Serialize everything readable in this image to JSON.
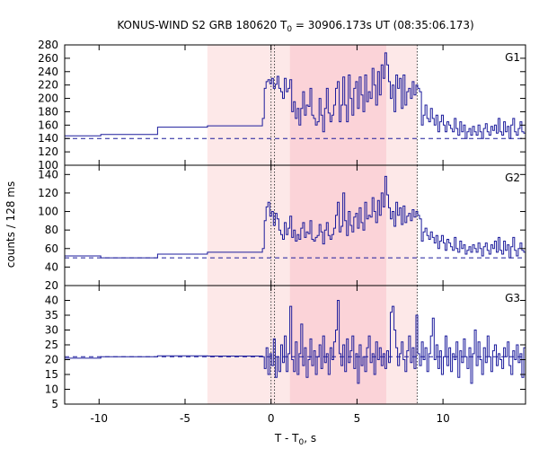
{
  "chart_data": {
    "type": "line",
    "title": "KONUS-WIND S2 GRB 180620 T",
    "title_sub": "0",
    "title_rest": " = 30906.173s UT (08:35:06.173)",
    "xlabel": "T - T",
    "xlabel_sub": "0",
    "xlabel_rest": ", s",
    "ylabel": "counts / 128 ms",
    "xlim": [
      -12,
      14.8
    ],
    "xticks": [
      -10,
      -5,
      0,
      5,
      10
    ],
    "xtick_labels": [
      "-10",
      "-5",
      "0",
      "5",
      "10"
    ],
    "shaded_regions": [
      {
        "from": -3.7,
        "to": 8.5,
        "color": "#fde8e8"
      },
      {
        "from": 1.1,
        "to": 6.7,
        "color": "#fbd3d8"
      }
    ],
    "vlines_dotted": [
      0.0,
      0.2,
      8.5
    ],
    "line_color": "#1c1c9c",
    "panels": [
      {
        "name": "G1",
        "ylim": [
          100,
          280
        ],
        "yticks": [
          120,
          140,
          160,
          180,
          200,
          220,
          240,
          260,
          280
        ],
        "ytick_labels": [
          "120",
          "140",
          "160",
          "180",
          "200",
          "220",
          "240",
          "260",
          "280"
        ],
        "background": 140,
        "step_x": [
          -12,
          -9.9,
          -6.6,
          -3.7,
          -0.5
        ],
        "step_y": [
          144,
          146,
          157,
          159
        ],
        "burst_x0": -0.5,
        "burst_x1": 14.8,
        "burst": [
          170,
          215,
          225,
          228,
          222,
          230,
          215,
          221,
          233,
          215,
          210,
          200,
          230,
          210,
          215,
          228,
          180,
          195,
          170,
          185,
          160,
          185,
          210,
          175,
          190,
          188,
          215,
          175,
          170,
          160,
          165,
          200,
          175,
          150,
          185,
          215,
          178,
          165,
          175,
          190,
          215,
          225,
          165,
          190,
          232,
          190,
          165,
          235,
          200,
          175,
          215,
          225,
          185,
          232,
          205,
          180,
          235,
          195,
          210,
          200,
          245,
          220,
          190,
          240,
          205,
          250,
          230,
          268,
          250,
          225,
          200,
          220,
          180,
          235,
          215,
          230,
          185,
          235,
          190,
          210,
          215,
          200,
          225,
          205,
          220,
          215,
          210,
          160,
          175,
          190,
          170,
          165,
          185,
          170,
          160,
          175,
          150,
          165,
          175,
          160,
          150,
          165,
          160,
          155,
          150,
          170,
          155,
          145,
          165,
          150,
          160,
          140,
          150,
          155,
          145,
          158,
          150,
          145,
          160,
          150,
          140,
          155,
          162,
          150,
          145,
          158,
          152,
          160,
          148,
          170,
          150,
          145,
          165,
          150,
          158,
          140,
          160,
          170,
          150,
          145,
          155,
          165,
          150,
          148
        ]
      },
      {
        "name": "G2",
        "ylim": [
          20,
          150
        ],
        "yticks": [
          20,
          40,
          60,
          80,
          100,
          120,
          140
        ],
        "ytick_labels": [
          "20",
          "40",
          "60",
          "80",
          "100",
          "120",
          "140"
        ],
        "background": 50,
        "step_x": [
          -12,
          -9.9,
          -6.6,
          -3.7,
          -0.5
        ],
        "step_y": [
          52,
          50,
          54,
          56
        ],
        "burst_x0": -0.5,
        "burst_x1": 14.8,
        "burst": [
          60,
          90,
          105,
          110,
          95,
          100,
          85,
          98,
          92,
          80,
          75,
          70,
          88,
          75,
          82,
          95,
          72,
          80,
          68,
          75,
          70,
          82,
          88,
          72,
          78,
          76,
          90,
          70,
          68,
          72,
          74,
          86,
          78,
          65,
          80,
          88,
          74,
          70,
          75,
          82,
          96,
          110,
          78,
          84,
          120,
          90,
          74,
          100,
          85,
          78,
          94,
          98,
          82,
          104,
          88,
          80,
          110,
          92,
          96,
          94,
          115,
          100,
          88,
          112,
          96,
          120,
          105,
          138,
          118,
          104,
          92,
          100,
          84,
          110,
          96,
          104,
          86,
          106,
          88,
          95,
          98,
          90,
          102,
          94,
          100,
          96,
          92,
          68,
          78,
          82,
          74,
          70,
          78,
          72,
          66,
          74,
          60,
          68,
          74,
          66,
          58,
          70,
          66,
          62,
          58,
          72,
          60,
          56,
          68,
          60,
          64,
          54,
          58,
          62,
          56,
          64,
          60,
          56,
          66,
          60,
          52,
          62,
          66,
          58,
          54,
          64,
          60,
          68,
          56,
          72,
          58,
          54,
          68,
          58,
          64,
          50,
          62,
          72,
          58,
          52,
          60,
          66,
          58,
          56
        ]
      },
      {
        "name": "G3",
        "ylim": [
          5,
          45
        ],
        "yticks": [
          5,
          10,
          15,
          20,
          25,
          30,
          35,
          40
        ],
        "ytick_labels": [
          "5",
          "10",
          "15",
          "20",
          "25",
          "30",
          "35",
          "40"
        ],
        "background": 21,
        "step_x": [
          -12,
          -9.9,
          -6.6,
          -3.7,
          -0.5
        ],
        "step_y": [
          20.5,
          21,
          21.3,
          21.2
        ],
        "burst_x0": -0.5,
        "burst_x1": 14.8,
        "burst": [
          21,
          17,
          24,
          15,
          22,
          18,
          27,
          14,
          21,
          16,
          25,
          19,
          28,
          16,
          22,
          38,
          20,
          16,
          26,
          15,
          22,
          32,
          18,
          24,
          14,
          20,
          27,
          18,
          23,
          15,
          21,
          25,
          17,
          28,
          19,
          22,
          15,
          24,
          20,
          26,
          30,
          40,
          22,
          18,
          25,
          16,
          27,
          19,
          23,
          28,
          17,
          22,
          12,
          25,
          18,
          21,
          16,
          24,
          28,
          19,
          22,
          15,
          26,
          20,
          24,
          18,
          22,
          17,
          23,
          19,
          36,
          38,
          30,
          24,
          18,
          22,
          26,
          20,
          16,
          23,
          28,
          19,
          24,
          17,
          35,
          22,
          18,
          26,
          20,
          24,
          16,
          22,
          28,
          34,
          20,
          25,
          17,
          23,
          15,
          21,
          28,
          18,
          24,
          16,
          22,
          20,
          26,
          14,
          23,
          19,
          27,
          21,
          17,
          24,
          12,
          22,
          30,
          18,
          26,
          20,
          15,
          24,
          19,
          28,
          21,
          16,
          23,
          25,
          18,
          22,
          20,
          17,
          24,
          21,
          26,
          18,
          15,
          23,
          20,
          25,
          19,
          22,
          14,
          24
        ]
      }
    ]
  }
}
